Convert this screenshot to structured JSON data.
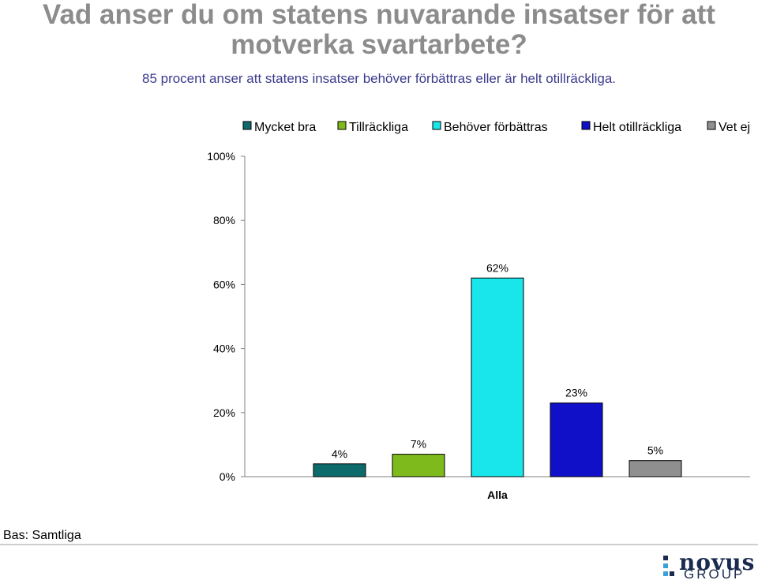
{
  "title_line1": "Vad anser du om statens nuvarande insatser för att",
  "title_line2": "motverka svartarbete?",
  "subtitle": "85 procent anser att statens insatser behöver förbättras eller är helt otillräckliga.",
  "base_label": "Bas: Samtliga",
  "logo": {
    "word": "novus",
    "group": "GROUP"
  },
  "chart_data": {
    "type": "bar",
    "categories": [
      "Alla"
    ],
    "series": [
      {
        "name": "Mycket bra",
        "values": [
          4
        ],
        "color": "#0e6b6b",
        "label": "4%"
      },
      {
        "name": "Tillräckliga",
        "values": [
          7
        ],
        "color": "#7fba1c",
        "label": "7%"
      },
      {
        "name": "Behöver förbättras",
        "values": [
          62
        ],
        "color": "#18e6ea",
        "label": "62%"
      },
      {
        "name": "Helt otillräckliga",
        "values": [
          23
        ],
        "color": "#1010c8",
        "label": "23%"
      },
      {
        "name": "Vet ej",
        "values": [
          5
        ],
        "color": "#8f8f8f",
        "label": "5%"
      }
    ],
    "ylim": [
      0,
      100
    ],
    "yticks": [
      0,
      20,
      40,
      60,
      80,
      100
    ],
    "ytick_labels": [
      "0%",
      "20%",
      "40%",
      "60%",
      "80%",
      "100%"
    ],
    "grid": false,
    "legend_position": "top"
  }
}
